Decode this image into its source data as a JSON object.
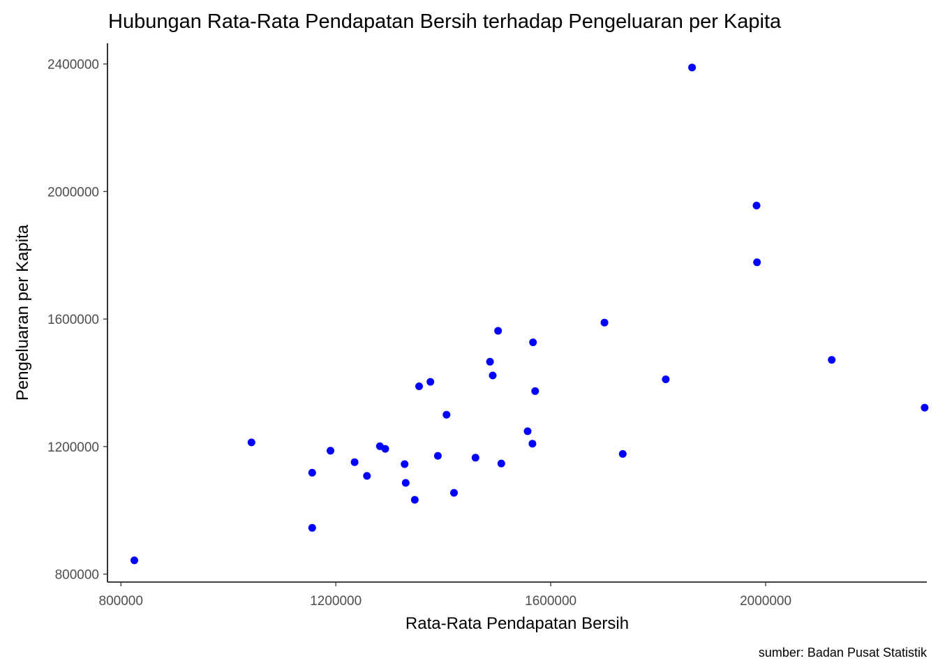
{
  "chart_data": {
    "type": "scatter",
    "title": "Hubungan Rata-Rata Pendapatan Bersih terhadap Pengeluaran per Kapita",
    "xlabel": "Rata-Rata Pendapatan Bersih",
    "ylabel": "Pengeluaran per Kapita",
    "caption": "sumber: Badan Pusat Statistik",
    "xlim": [
      775000,
      2300000
    ],
    "ylim": [
      775000,
      2465000
    ],
    "x_ticks": [
      800000,
      1200000,
      1600000,
      2000000
    ],
    "x_tick_labels": [
      "800000",
      "1200000",
      "1600000",
      "2000000"
    ],
    "y_ticks": [
      800000,
      1200000,
      1600000,
      2000000,
      2400000
    ],
    "y_tick_labels": [
      "800000",
      "1200000",
      "1600000",
      "2000000",
      "2400000"
    ],
    "grid": false,
    "legend": "none",
    "point_color": "#0000ff",
    "points": [
      {
        "x": 825000,
        "y": 843000
      },
      {
        "x": 1043000,
        "y": 1213000
      },
      {
        "x": 1156000,
        "y": 1118000
      },
      {
        "x": 1156000,
        "y": 945000
      },
      {
        "x": 1190000,
        "y": 1187000
      },
      {
        "x": 1235000,
        "y": 1151000
      },
      {
        "x": 1258000,
        "y": 1108000
      },
      {
        "x": 1282000,
        "y": 1201000
      },
      {
        "x": 1292000,
        "y": 1193000
      },
      {
        "x": 1328000,
        "y": 1145000
      },
      {
        "x": 1330000,
        "y": 1086000
      },
      {
        "x": 1347000,
        "y": 1033000
      },
      {
        "x": 1355000,
        "y": 1389000
      },
      {
        "x": 1376000,
        "y": 1403000
      },
      {
        "x": 1390000,
        "y": 1171000
      },
      {
        "x": 1406000,
        "y": 1300000
      },
      {
        "x": 1420000,
        "y": 1055000
      },
      {
        "x": 1460000,
        "y": 1165000
      },
      {
        "x": 1487000,
        "y": 1466000
      },
      {
        "x": 1492000,
        "y": 1423000
      },
      {
        "x": 1502000,
        "y": 1563000
      },
      {
        "x": 1508000,
        "y": 1147000
      },
      {
        "x": 1557000,
        "y": 1248000
      },
      {
        "x": 1566000,
        "y": 1209000
      },
      {
        "x": 1567000,
        "y": 1527000
      },
      {
        "x": 1571000,
        "y": 1374000
      },
      {
        "x": 1700000,
        "y": 1589000
      },
      {
        "x": 1734000,
        "y": 1177000
      },
      {
        "x": 1814000,
        "y": 1411000
      },
      {
        "x": 1863000,
        "y": 2389000
      },
      {
        "x": 1983000,
        "y": 1956000
      },
      {
        "x": 1984000,
        "y": 1778000
      },
      {
        "x": 2123000,
        "y": 1472000
      },
      {
        "x": 2296000,
        "y": 1322000
      }
    ]
  }
}
